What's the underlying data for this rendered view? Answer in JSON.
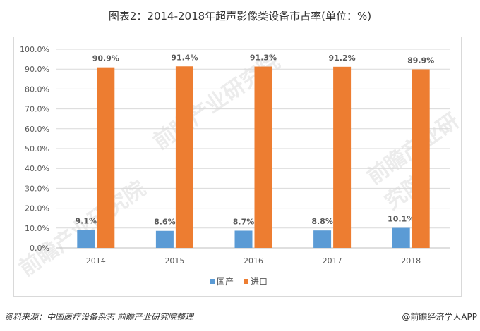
{
  "title": "图表2：2014-2018年超声影像类设备市占率(单位：%)",
  "source": "资料来源：中国医疗设备杂志 前瞻产业研究院整理",
  "brand": "@前瞻经济学人APP",
  "watermark": "前瞻产业研究院",
  "chart_data": {
    "type": "bar",
    "title": "图表2：2014-2018年超声影像类设备市占率(单位：%)",
    "categories": [
      "2014",
      "2015",
      "2016",
      "2017",
      "2018"
    ],
    "series": [
      {
        "name": "国产",
        "color": "#5b9bd5",
        "values": [
          9.1,
          8.6,
          8.7,
          8.8,
          10.1
        ],
        "labels": [
          "9.1%",
          "8.6%",
          "8.7%",
          "8.8%",
          "10.1%"
        ]
      },
      {
        "name": "进口",
        "color": "#ed7d31",
        "values": [
          90.9,
          91.4,
          91.3,
          91.2,
          89.9
        ],
        "labels": [
          "90.9%",
          "91.4%",
          "91.3%",
          "91.2%",
          "89.9%"
        ]
      }
    ],
    "ylim": [
      0,
      100
    ],
    "yticks": [
      "0.0%",
      "10.0%",
      "20.0%",
      "30.0%",
      "40.0%",
      "50.0%",
      "60.0%",
      "70.0%",
      "80.0%",
      "90.0%",
      "100.0%"
    ],
    "grid": true,
    "legend": "bottom"
  }
}
